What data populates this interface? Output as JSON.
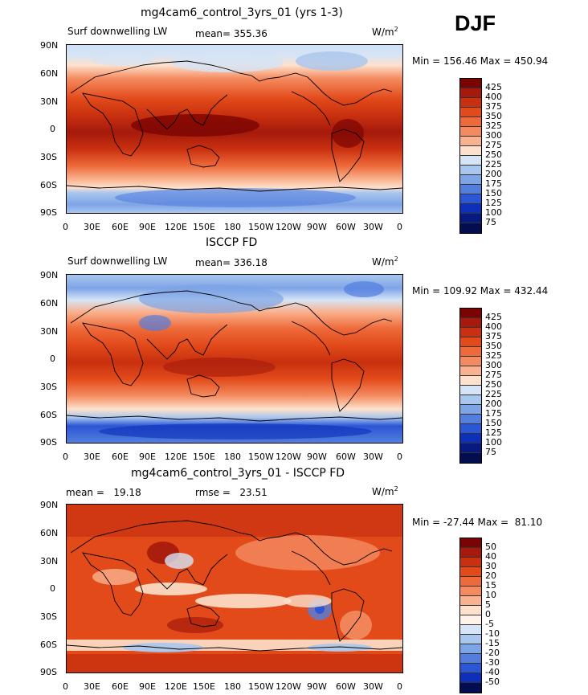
{
  "season": "DJF",
  "panels": [
    {
      "title": "mg4cam6_control_3yrs_01 (yrs 1-3)",
      "left_label": "Surf downwelling LW",
      "center_label": "mean= 355.36",
      "units_base": "W/m",
      "units_sup": "2",
      "minmax": "Min = 156.46 Max = 450.94",
      "colorbar": [
        "425",
        "400",
        "375",
        "350",
        "325",
        "300",
        "275",
        "250",
        "225",
        "200",
        "175",
        "150",
        "125",
        "100",
        "75"
      ]
    },
    {
      "title": "ISCCP FD",
      "left_label": "Surf downwelling LW",
      "center_label": "mean= 336.18",
      "units_base": "W/m",
      "units_sup": "2",
      "minmax": "Min = 109.92 Max = 432.44",
      "colorbar": [
        "425",
        "400",
        "375",
        "350",
        "325",
        "300",
        "275",
        "250",
        "225",
        "200",
        "175",
        "150",
        "125",
        "100",
        "75"
      ]
    },
    {
      "title": "mg4cam6_control_3yrs_01 - ISCCP FD",
      "left_label": "mean =   19.18",
      "center_label": "rmse =   23.51",
      "units_base": "W/m",
      "units_sup": "2",
      "minmax": "Min = -27.44 Max =  81.10",
      "colorbar": [
        "50",
        "40",
        "30",
        "20",
        "15",
        "10",
        "5",
        "0",
        "-5",
        "-10",
        "-15",
        "-20",
        "-30",
        "-40",
        "-50"
      ]
    }
  ],
  "lat_labels": [
    "90N",
    "60N",
    "30N",
    "0",
    "30S",
    "60S",
    "90S"
  ],
  "lon_labels": [
    "0",
    "30E",
    "60E",
    "90E",
    "120E",
    "150E",
    "180",
    "150W",
    "120W",
    "90W",
    "60W",
    "30W",
    "0"
  ],
  "colors": {
    "abs_scale": [
      "#7a0403",
      "#a51a0c",
      "#c8300f",
      "#e24a1a",
      "#ee6a3a",
      "#f48b60",
      "#f9b28f",
      "#fde1cc",
      "#d5e4f6",
      "#a9c6ee",
      "#7da4e6",
      "#537ede",
      "#2b56d4",
      "#0e2fb8",
      "#071a80",
      "#030d50"
    ],
    "diff_scale": [
      "#7a0403",
      "#a51a0c",
      "#c8300f",
      "#e24a1a",
      "#ee6a3a",
      "#f48b60",
      "#f9b28f",
      "#fde1cc",
      "#fff2e8",
      "#d5e4f6",
      "#a9c6ee",
      "#7da4e6",
      "#537ede",
      "#2b56d4",
      "#0e2fb8",
      "#030d50"
    ]
  }
}
